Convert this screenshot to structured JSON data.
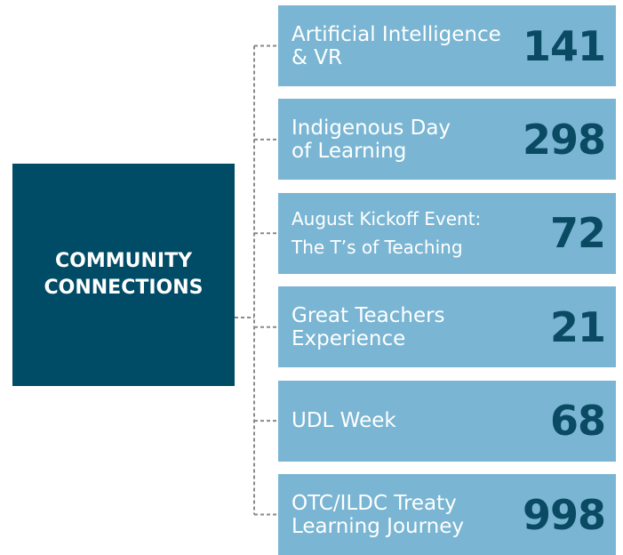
{
  "center": {
    "lines": [
      "COMMUNITY",
      "CONNECTIONS"
    ]
  },
  "items": [
    {
      "label": [
        "Artificial Intelligence",
        "& VR"
      ],
      "count": 141
    },
    {
      "label": [
        "Indigenous Day",
        "of Learning"
      ],
      "count": 298
    },
    {
      "label": [
        "August Kickoff Event:",
        "The T’s of Teaching"
      ],
      "count": 72
    },
    {
      "label": [
        "Great Teachers",
        "Experience"
      ],
      "count": 21
    },
    {
      "label": [
        "UDL Week"
      ],
      "count": 68
    },
    {
      "label": [
        "OTC/ILDC Treaty",
        "Learning Journey"
      ],
      "count": 998
    }
  ]
}
